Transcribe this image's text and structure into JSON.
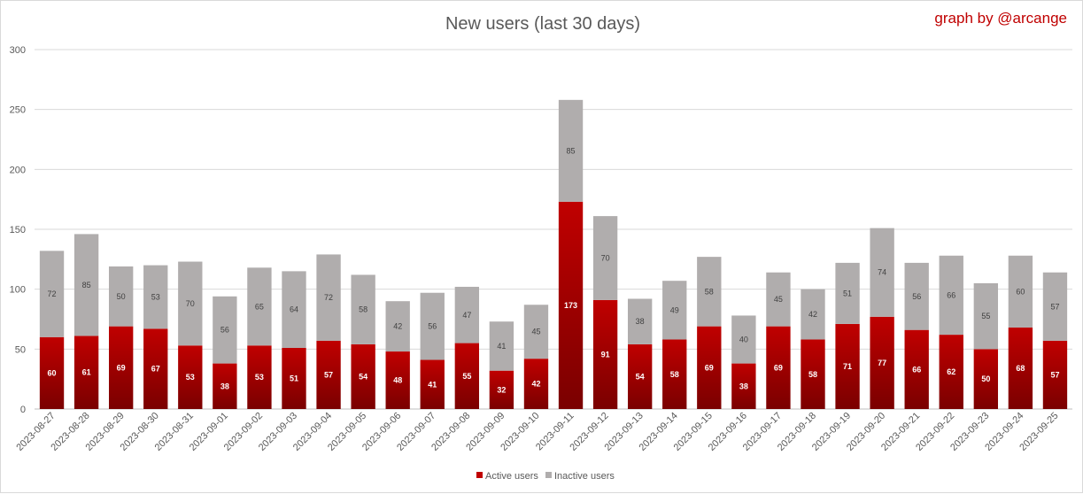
{
  "chart_data": {
    "type": "bar",
    "stacked": true,
    "title": "New users (last 30 days)",
    "credit": "graph by @arcange",
    "xlabel": "",
    "ylabel": "",
    "ylim": [
      0,
      300
    ],
    "yticks": [
      0,
      50,
      100,
      150,
      200,
      250,
      300
    ],
    "grid": true,
    "legend_position": "bottom",
    "categories": [
      "2023-08-27",
      "2023-08-28",
      "2023-08-29",
      "2023-08-30",
      "2023-08-31",
      "2023-09-01",
      "2023-09-02",
      "2023-09-03",
      "2023-09-04",
      "2023-09-05",
      "2023-09-06",
      "2023-09-07",
      "2023-09-08",
      "2023-09-09",
      "2023-09-10",
      "2023-09-11",
      "2023-09-12",
      "2023-09-13",
      "2023-09-14",
      "2023-09-15",
      "2023-09-16",
      "2023-09-17",
      "2023-09-18",
      "2023-09-19",
      "2023-09-20",
      "2023-09-21",
      "2023-09-22",
      "2023-09-23",
      "2023-09-24",
      "2023-09-25"
    ],
    "series": [
      {
        "name": "Active users",
        "color": "#c00000",
        "color_dark": "#7a0000",
        "values": [
          60,
          61,
          69,
          67,
          53,
          38,
          53,
          51,
          57,
          54,
          48,
          41,
          55,
          32,
          42,
          173,
          91,
          54,
          58,
          69,
          38,
          69,
          58,
          71,
          77,
          66,
          62,
          50,
          68,
          57
        ]
      },
      {
        "name": "Inactive users",
        "color": "#b0adad",
        "values": [
          72,
          85,
          50,
          53,
          70,
          56,
          65,
          64,
          72,
          58,
          42,
          56,
          47,
          41,
          45,
          85,
          70,
          38,
          49,
          58,
          40,
          45,
          42,
          51,
          74,
          56,
          66,
          55,
          60,
          57
        ]
      }
    ]
  }
}
